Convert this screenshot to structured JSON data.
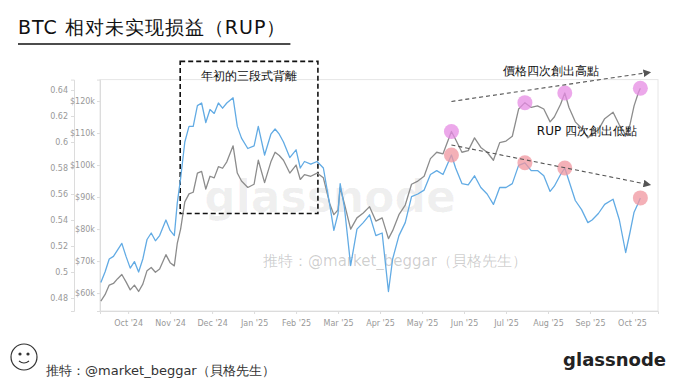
{
  "chart_data": {
    "type": "line",
    "title": "BTC 相对未实现损益（RUP）",
    "x": [
      -0.65,
      -0.55,
      -0.45,
      -0.35,
      -0.25,
      -0.15,
      -0.05,
      0.05,
      0.15,
      0.25,
      0.35,
      0.45,
      0.55,
      0.65,
      0.75,
      0.9,
      1.0,
      1.1,
      1.17,
      1.25,
      1.35,
      1.45,
      1.55,
      1.65,
      1.75,
      1.85,
      1.95,
      2.05,
      2.15,
      2.25,
      2.35,
      2.5,
      2.6,
      2.7,
      2.85,
      3.0,
      3.1,
      3.25,
      3.4,
      3.5,
      3.6,
      3.7,
      3.85,
      4.0,
      4.1,
      4.2,
      4.35,
      4.5,
      4.65,
      4.8,
      4.9,
      5.0,
      5.05,
      5.15,
      5.3,
      5.45,
      5.6,
      5.75,
      5.9,
      6.05,
      6.2,
      6.3,
      6.45,
      6.6,
      6.75,
      6.9,
      7.05,
      7.2,
      7.35,
      7.5,
      7.7,
      7.8,
      7.95,
      8.1,
      8.25,
      8.4,
      8.55,
      8.7,
      8.85,
      9.0,
      9.15,
      9.3,
      9.45,
      9.6,
      9.75,
      9.9,
      10.05,
      10.15,
      10.3,
      10.4,
      10.5,
      10.65,
      10.8,
      10.95,
      11.05,
      11.2,
      11.35,
      11.55,
      11.7,
      11.85,
      11.95,
      12.05,
      12.15,
      12.2
    ],
    "xlim": [
      -0.67,
      12.62
    ],
    "xticks": [
      {
        "value": 0,
        "label": "Oct '24"
      },
      {
        "value": 1,
        "label": "Nov '24"
      },
      {
        "value": 2,
        "label": "Dec '24"
      },
      {
        "value": 3,
        "label": "Jan '25"
      },
      {
        "value": 4,
        "label": "Feb '25"
      },
      {
        "value": 5,
        "label": "Mar '25"
      },
      {
        "value": 6,
        "label": "Apr '25"
      },
      {
        "value": 7,
        "label": "May '25"
      },
      {
        "value": 8,
        "label": "Jun '25"
      },
      {
        "value": 9,
        "label": "Jul '25"
      },
      {
        "value": 10,
        "label": "Aug '25"
      },
      {
        "value": 11,
        "label": "Sep '25"
      },
      {
        "value": 12,
        "label": "Oct '25"
      }
    ],
    "ylim": [
      0.47,
      0.648
    ],
    "yticks": [
      0.48,
      0.5,
      0.52,
      0.54,
      0.56,
      0.58,
      0.6,
      0.62,
      0.64
    ],
    "y2lim": [
      54400,
      126700
    ],
    "y2ticks": [
      {
        "value": 60000,
        "label": "$60k"
      },
      {
        "value": 70000,
        "label": "$70k"
      },
      {
        "value": 80000,
        "label": "$80k"
      },
      {
        "value": 90000,
        "label": "$90k"
      },
      {
        "value": 100000,
        "label": "$100k"
      },
      {
        "value": 110000,
        "label": "$110k"
      },
      {
        "value": 120000,
        "label": "$120k"
      }
    ],
    "grid": false,
    "series": [
      {
        "color": "#8c8c8c",
        "axis": "y2",
        "values": [
          57500,
          59500,
          62500,
          63000,
          64500,
          65800,
          63500,
          61000,
          62500,
          60500,
          62800,
          67000,
          68000,
          66500,
          67500,
          72000,
          69500,
          68500,
          75500,
          80000,
          88500,
          91000,
          91500,
          97500,
          98000,
          92500,
          96500,
          96000,
          99500,
          99000,
          101000,
          106000,
          97500,
          95000,
          93000,
          94000,
          101500,
          94500,
          101000,
          104000,
          103000,
          101500,
          97500,
          100000,
          95500,
          97000,
          96500,
          97500,
          96000,
          88000,
          84500,
          86000,
          93000,
          88000,
          80000,
          83500,
          85000,
          87000,
          82500,
          83500,
          77000,
          79500,
          84500,
          87500,
          94000,
          95000,
          96500,
          102000,
          104000,
          103500,
          110500,
          108000,
          104000,
          104500,
          108500,
          105500,
          104000,
          101500,
          107000,
          107500,
          109000,
          117500,
          119500,
          118000,
          118500,
          117500,
          113500,
          115000,
          119000,
          122500,
          118000,
          113500,
          111500,
          108500,
          109500,
          111000,
          114500,
          116500,
          112500,
          109500,
          112500,
          118500,
          122500,
          124000
        ],
        "markers_at": [
          7.7,
          9.45,
          10.4,
          12.2
        ],
        "trend_label": "價格四次創出高點"
      },
      {
        "color": "#62abe4",
        "values": [
          0.492,
          0.5,
          0.51,
          0.512,
          0.517,
          0.522,
          0.512,
          0.503,
          0.508,
          0.5,
          0.51,
          0.525,
          0.53,
          0.524,
          0.528,
          0.54,
          0.532,
          0.528,
          0.553,
          0.572,
          0.6,
          0.612,
          0.612,
          0.628,
          0.63,
          0.615,
          0.625,
          0.622,
          0.63,
          0.626,
          0.63,
          0.634,
          0.612,
          0.603,
          0.595,
          0.597,
          0.612,
          0.59,
          0.606,
          0.61,
          0.606,
          0.6,
          0.588,
          0.594,
          0.58,
          0.585,
          0.583,
          0.585,
          0.58,
          0.552,
          0.532,
          0.545,
          0.568,
          0.55,
          0.505,
          0.533,
          0.538,
          0.544,
          0.528,
          0.53,
          0.485,
          0.51,
          0.528,
          0.538,
          0.558,
          0.56,
          0.563,
          0.575,
          0.578,
          0.575,
          0.59,
          0.58,
          0.568,
          0.567,
          0.574,
          0.565,
          0.56,
          0.552,
          0.565,
          0.565,
          0.568,
          0.582,
          0.584,
          0.578,
          0.578,
          0.574,
          0.562,
          0.566,
          0.575,
          0.58,
          0.57,
          0.555,
          0.548,
          0.538,
          0.54,
          0.545,
          0.552,
          0.556,
          0.54,
          0.515,
          0.53,
          0.546,
          0.553,
          0.557
        ],
        "markers_at": [
          7.7,
          9.45,
          10.4,
          12.2
        ],
        "trend_label": "RUP 四次創出低點"
      }
    ],
    "annotations": [
      {
        "text": "年初的三段式背離",
        "x": [
          1.24,
          4.52
        ],
        "y": [
          0.545,
          0.662
        ],
        "line_style": "dashed"
      }
    ],
    "watermarks": [
      "glassnode",
      "推特：@market_beggar（貝格先生）"
    ],
    "footer": {
      "credit": "推特：@market_beggar（貝格先生）",
      "brand": "glassnode"
    }
  }
}
